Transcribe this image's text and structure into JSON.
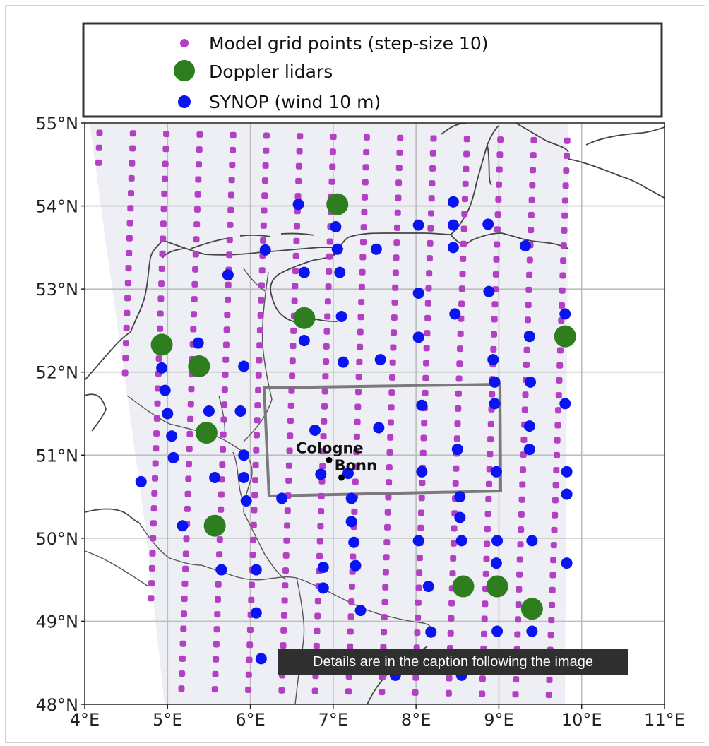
{
  "map": {
    "lon_ticks": [
      "4°E",
      "5°E",
      "6°E",
      "7°E",
      "8°E",
      "9°E",
      "10°E",
      "11°E"
    ],
    "lat_ticks": [
      "48°N",
      "49°N",
      "50°N",
      "51°N",
      "52°N",
      "53°N",
      "54°N",
      "55°N"
    ],
    "lon_range": [
      4,
      11
    ],
    "lat_range": [
      48,
      55
    ],
    "grid": true
  },
  "legend": {
    "placement": "top",
    "items": [
      {
        "label": "Model grid points (step-size 10)",
        "color": "#b23fc4",
        "marker": "small-square-dot"
      },
      {
        "label": "Doppler lidars",
        "color": "#2e7d1f",
        "marker": "large-circle"
      },
      {
        "label": "SYNOP (wind 10 m)",
        "color": "#0a14f0",
        "marker": "circle"
      }
    ]
  },
  "cities": [
    {
      "name": "Cologne",
      "lon": 6.95,
      "lat": 50.94
    },
    {
      "name": "Bonn",
      "lon": 7.1,
      "lat": 50.73
    }
  ],
  "colors": {
    "grid_points": "#b23fc4",
    "lidar": "#2e7d1f",
    "synop": "#0a14f0",
    "domain_shade": "#edeff5",
    "coast": "#333333",
    "region_box": "#7a7a7a"
  },
  "doppler_lidars": [
    [
      7.05,
      54.02
    ],
    [
      6.65,
      52.65
    ],
    [
      4.93,
      52.33
    ],
    [
      5.38,
      52.07
    ],
    [
      5.47,
      51.27
    ],
    [
      5.57,
      50.15
    ],
    [
      9.8,
      52.43
    ],
    [
      8.57,
      49.42
    ],
    [
      8.98,
      49.42
    ],
    [
      9.4,
      49.15
    ]
  ],
  "synop_stations": [
    [
      6.58,
      54.02
    ],
    [
      7.03,
      53.75
    ],
    [
      8.03,
      53.77
    ],
    [
      8.45,
      53.77
    ],
    [
      8.45,
      54.05
    ],
    [
      8.87,
      53.78
    ],
    [
      6.18,
      53.47
    ],
    [
      7.05,
      53.48
    ],
    [
      7.52,
      53.48
    ],
    [
      8.45,
      53.5
    ],
    [
      9.32,
      53.52
    ],
    [
      5.73,
      53.17
    ],
    [
      6.65,
      53.2
    ],
    [
      7.08,
      53.2
    ],
    [
      8.03,
      52.95
    ],
    [
      8.88,
      52.97
    ],
    [
      7.1,
      52.67
    ],
    [
      8.47,
      52.7
    ],
    [
      9.8,
      52.7
    ],
    [
      8.03,
      52.42
    ],
    [
      9.37,
      52.43
    ],
    [
      5.37,
      52.35
    ],
    [
      6.65,
      52.38
    ],
    [
      7.12,
      52.12
    ],
    [
      7.57,
      52.15
    ],
    [
      5.92,
      52.07
    ],
    [
      4.93,
      52.05
    ],
    [
      8.93,
      52.15
    ],
    [
      9.38,
      51.88
    ],
    [
      8.95,
      51.88
    ],
    [
      4.97,
      51.78
    ],
    [
      5.5,
      51.53
    ],
    [
      5.88,
      51.53
    ],
    [
      5.0,
      51.5
    ],
    [
      8.07,
      51.6
    ],
    [
      8.95,
      51.62
    ],
    [
      9.8,
      51.62
    ],
    [
      6.78,
      51.3
    ],
    [
      7.55,
      51.33
    ],
    [
      9.37,
      51.35
    ],
    [
      5.05,
      51.23
    ],
    [
      5.92,
      51.0
    ],
    [
      8.5,
      51.07
    ],
    [
      9.37,
      51.07
    ],
    [
      5.07,
      50.97
    ],
    [
      6.85,
      50.77
    ],
    [
      7.18,
      50.78
    ],
    [
      8.07,
      50.8
    ],
    [
      8.97,
      50.8
    ],
    [
      9.82,
      50.8
    ],
    [
      4.68,
      50.68
    ],
    [
      5.57,
      50.73
    ],
    [
      5.92,
      50.73
    ],
    [
      9.82,
      50.53
    ],
    [
      6.38,
      50.48
    ],
    [
      5.95,
      50.45
    ],
    [
      7.22,
      50.48
    ],
    [
      8.53,
      50.5
    ],
    [
      7.22,
      50.2
    ],
    [
      8.53,
      50.25
    ],
    [
      5.18,
      50.15
    ],
    [
      8.03,
      49.97
    ],
    [
      7.25,
      49.95
    ],
    [
      8.55,
      49.97
    ],
    [
      8.98,
      49.97
    ],
    [
      9.4,
      49.97
    ],
    [
      5.65,
      49.62
    ],
    [
      6.07,
      49.62
    ],
    [
      6.88,
      49.65
    ],
    [
      7.27,
      49.67
    ],
    [
      8.97,
      49.7
    ],
    [
      9.82,
      49.7
    ],
    [
      6.88,
      49.4
    ],
    [
      8.15,
      49.42
    ],
    [
      6.07,
      49.1
    ],
    [
      7.33,
      49.13
    ],
    [
      8.18,
      48.87
    ],
    [
      8.98,
      48.88
    ],
    [
      9.4,
      48.88
    ],
    [
      6.13,
      48.55
    ],
    [
      7.75,
      48.35
    ],
    [
      8.55,
      48.35
    ]
  ],
  "tooltip": {
    "text": "Details are in the caption following the image"
  }
}
